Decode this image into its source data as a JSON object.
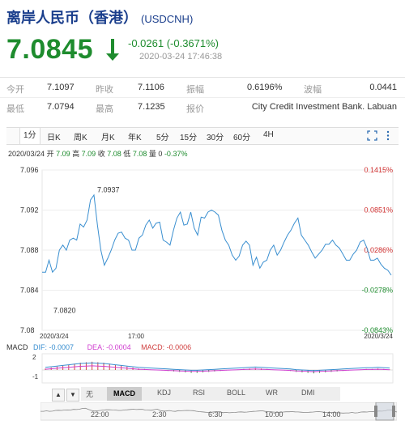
{
  "header": {
    "title": "离岸人民币（香港）",
    "code": "(USDCNH)",
    "price": "7.0845",
    "change": "-0.0261 (-0.3671%)",
    "timestamp": "2020-03-24 17:46:38",
    "down_color": "#1e8c2e"
  },
  "quote": {
    "row1": [
      {
        "label": "今开",
        "value": "7.1097"
      },
      {
        "label": "昨收",
        "value": "7.1106"
      },
      {
        "label": "振幅",
        "value": "0.6196%"
      },
      {
        "label": "波幅",
        "value": "0.0441"
      }
    ],
    "row2": [
      {
        "label": "最低",
        "value": "7.0794"
      },
      {
        "label": "最高",
        "value": "7.1235"
      },
      {
        "label": "报价",
        "value": "City Credit Investment Bank. Labuan"
      }
    ]
  },
  "tabs": [
    "1分",
    "日K",
    "周K",
    "月K",
    "年K",
    "5分",
    "15分",
    "30分",
    "60分",
    "4H"
  ],
  "active_tab": "1分",
  "toolbar_icons": [
    "expand-icon",
    "more-icon"
  ],
  "infobar": {
    "date": "2020/03/24",
    "open_label": "开",
    "open": "7.09",
    "high_label": "高",
    "high": "7.09",
    "close_label": "收",
    "close": "7.08",
    "low_label": "低",
    "low": "7.08",
    "vol_label": "量",
    "vol": "0",
    "pct": "-0.37%"
  },
  "chart_data": {
    "type": "line",
    "ylim": [
      7.08,
      7.096
    ],
    "yticks": [
      "7.096",
      "7.092",
      "7.088",
      "7.084",
      "7.08"
    ],
    "right_ticks": [
      "0.1415%",
      "0.0851%",
      "0.0286%",
      "-0.0278%",
      "-0.0843%"
    ],
    "x_labels": {
      "start": "2020/3/24",
      "mid": "17:00",
      "end": "2020/3/24"
    },
    "annotations": {
      "high": "7.0937",
      "low": "7.0820"
    },
    "line_color": "#3a8fd0",
    "values": [
      7.0858,
      7.0858,
      7.087,
      7.0858,
      7.0862,
      7.088,
      7.0885,
      7.088,
      7.089,
      7.0892,
      7.089,
      7.0906,
      7.0903,
      7.091,
      7.093,
      7.0935,
      7.0905,
      7.088,
      7.0865,
      7.0872,
      7.088,
      7.089,
      7.0897,
      7.0898,
      7.0892,
      7.089,
      7.088,
      7.088,
      7.0892,
      7.0895,
      7.0905,
      7.091,
      7.0902,
      7.0907,
      7.0908,
      7.089,
      7.0888,
      7.0885,
      7.09,
      7.0912,
      7.0918,
      7.0905,
      7.0906,
      7.0918,
      7.0902,
      7.0895,
      7.0913,
      7.0912,
      7.0918,
      7.092,
      7.0918,
      7.0915,
      7.09,
      7.089,
      7.0885,
      7.0875,
      7.087,
      7.0874,
      7.0885,
      7.0889,
      7.0885,
      7.0865,
      7.0873,
      7.0862,
      7.0868,
      7.087,
      7.088,
      7.0885,
      7.0875,
      7.088,
      7.0888,
      7.0895,
      7.09,
      7.0907,
      7.0912,
      7.0895,
      7.089,
      7.0885,
      7.0878,
      7.0872,
      7.0876,
      7.088,
      7.0886,
      7.0886,
      7.089,
      7.0885,
      7.0882,
      7.0876,
      7.087,
      7.087,
      7.0876,
      7.088,
      7.0888,
      7.089,
      7.0882,
      7.087,
      7.087,
      7.0872,
      7.0866,
      7.0862,
      7.086,
      7.0855
    ]
  },
  "macd": {
    "label": "MACD",
    "dif": "DIF: -0.0007",
    "dea": "DEA: -0.0004",
    "macd": "MACD: -0.0006",
    "yticks": [
      "2",
      "-1"
    ],
    "dif_color": "#3a8fd0",
    "dea_color": "#d040d0",
    "macd_color": "#d04040",
    "values": [
      0.3,
      0.5,
      0.7,
      0.9,
      1.1,
      1.3,
      1.5,
      1.6,
      1.7,
      1.6,
      1.5,
      1.3,
      1.1,
      0.9,
      0.7,
      0.5,
      0.3,
      0.2,
      0.1,
      0.0,
      -0.1,
      -0.2,
      -0.3,
      -0.4,
      -0.5,
      -0.6,
      -0.6,
      -0.5,
      -0.4,
      -0.3,
      -0.2,
      -0.1,
      0.0,
      0.1,
      0.2,
      0.3,
      0.4,
      0.3,
      0.2,
      0.1,
      0.0,
      -0.1,
      -0.2,
      -0.4,
      -0.5,
      -0.6,
      -0.7,
      -0.6,
      -0.5,
      -0.4,
      -0.3,
      -0.2,
      -0.1,
      0.0,
      0.1,
      0.2,
      0.2,
      0.3,
      0.2,
      0.1
    ]
  },
  "indicators": [
    "无",
    "MACD",
    "KDJ",
    "RSI",
    "BOLL",
    "WR",
    "DMI"
  ],
  "active_indicator": "MACD",
  "nav_times": [
    "22:00",
    "2:30",
    "6:30",
    "10:00",
    "14:00"
  ],
  "nav_buttons": [
    "▲",
    "▼"
  ]
}
